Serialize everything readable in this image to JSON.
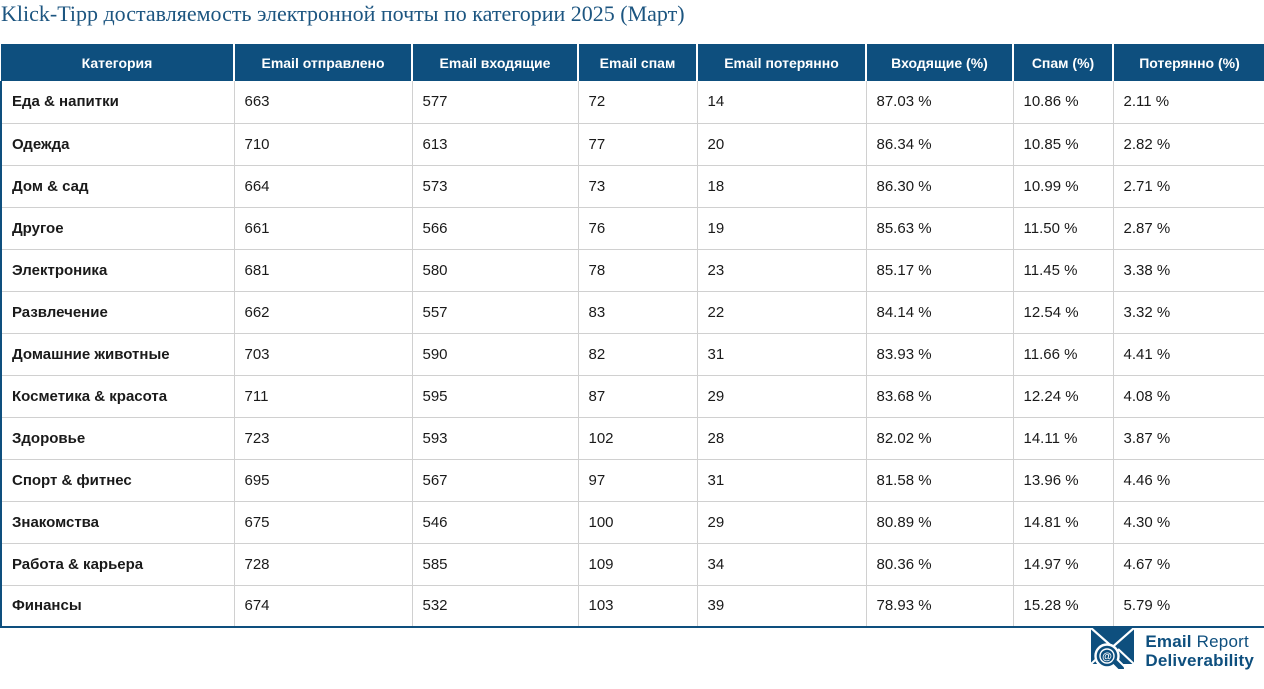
{
  "title": "Klick-Tipp доставляемость электронной почты по категории 2025 (Март)",
  "colors": {
    "header_bg": "#0e4f7e",
    "title_text": "#1c5580",
    "logo_blue": "#0f5180",
    "row_line": "#d0d0d0",
    "body_text": "#1a1a1a"
  },
  "footer": {
    "logo_word1": "Email",
    "logo_word2": "Report",
    "logo_word3": "Deliverability",
    "logo_at": "@"
  },
  "chart_data": {
    "type": "table",
    "title": "Klick-Tipp доставляемость электронной почты по категории 2025 (Март)",
    "columns": [
      "Категория",
      "Email отправлено",
      "Email входящие",
      "Email спам",
      "Email потерянно",
      "Входящие (%)",
      "Спам (%)",
      "Потерянно (%)"
    ],
    "percent_suffix": " %",
    "rows": [
      [
        "Еда & напитки",
        663,
        577,
        72,
        14,
        87.03,
        10.86,
        2.11
      ],
      [
        "Одежда",
        710,
        613,
        77,
        20,
        86.34,
        10.85,
        2.82
      ],
      [
        "Дом & сад",
        664,
        573,
        73,
        18,
        86.3,
        10.99,
        2.71
      ],
      [
        "Другое",
        661,
        566,
        76,
        19,
        85.63,
        11.5,
        2.87
      ],
      [
        "Электроника",
        681,
        580,
        78,
        23,
        85.17,
        11.45,
        3.38
      ],
      [
        "Развлечение",
        662,
        557,
        83,
        22,
        84.14,
        12.54,
        3.32
      ],
      [
        "Домашние животные",
        703,
        590,
        82,
        31,
        83.93,
        11.66,
        4.41
      ],
      [
        "Косметика & красота",
        711,
        595,
        87,
        29,
        83.68,
        12.24,
        4.08
      ],
      [
        "Здоровье",
        723,
        593,
        102,
        28,
        82.02,
        14.11,
        3.87
      ],
      [
        "Спорт & фитнес",
        695,
        567,
        97,
        31,
        81.58,
        13.96,
        4.46
      ],
      [
        "Знакомства",
        675,
        546,
        100,
        29,
        80.89,
        14.81,
        4.3
      ],
      [
        "Работа & карьера",
        728,
        585,
        109,
        34,
        80.36,
        14.97,
        4.67
      ],
      [
        "Финансы",
        674,
        532,
        103,
        39,
        78.93,
        15.28,
        5.79
      ]
    ]
  }
}
